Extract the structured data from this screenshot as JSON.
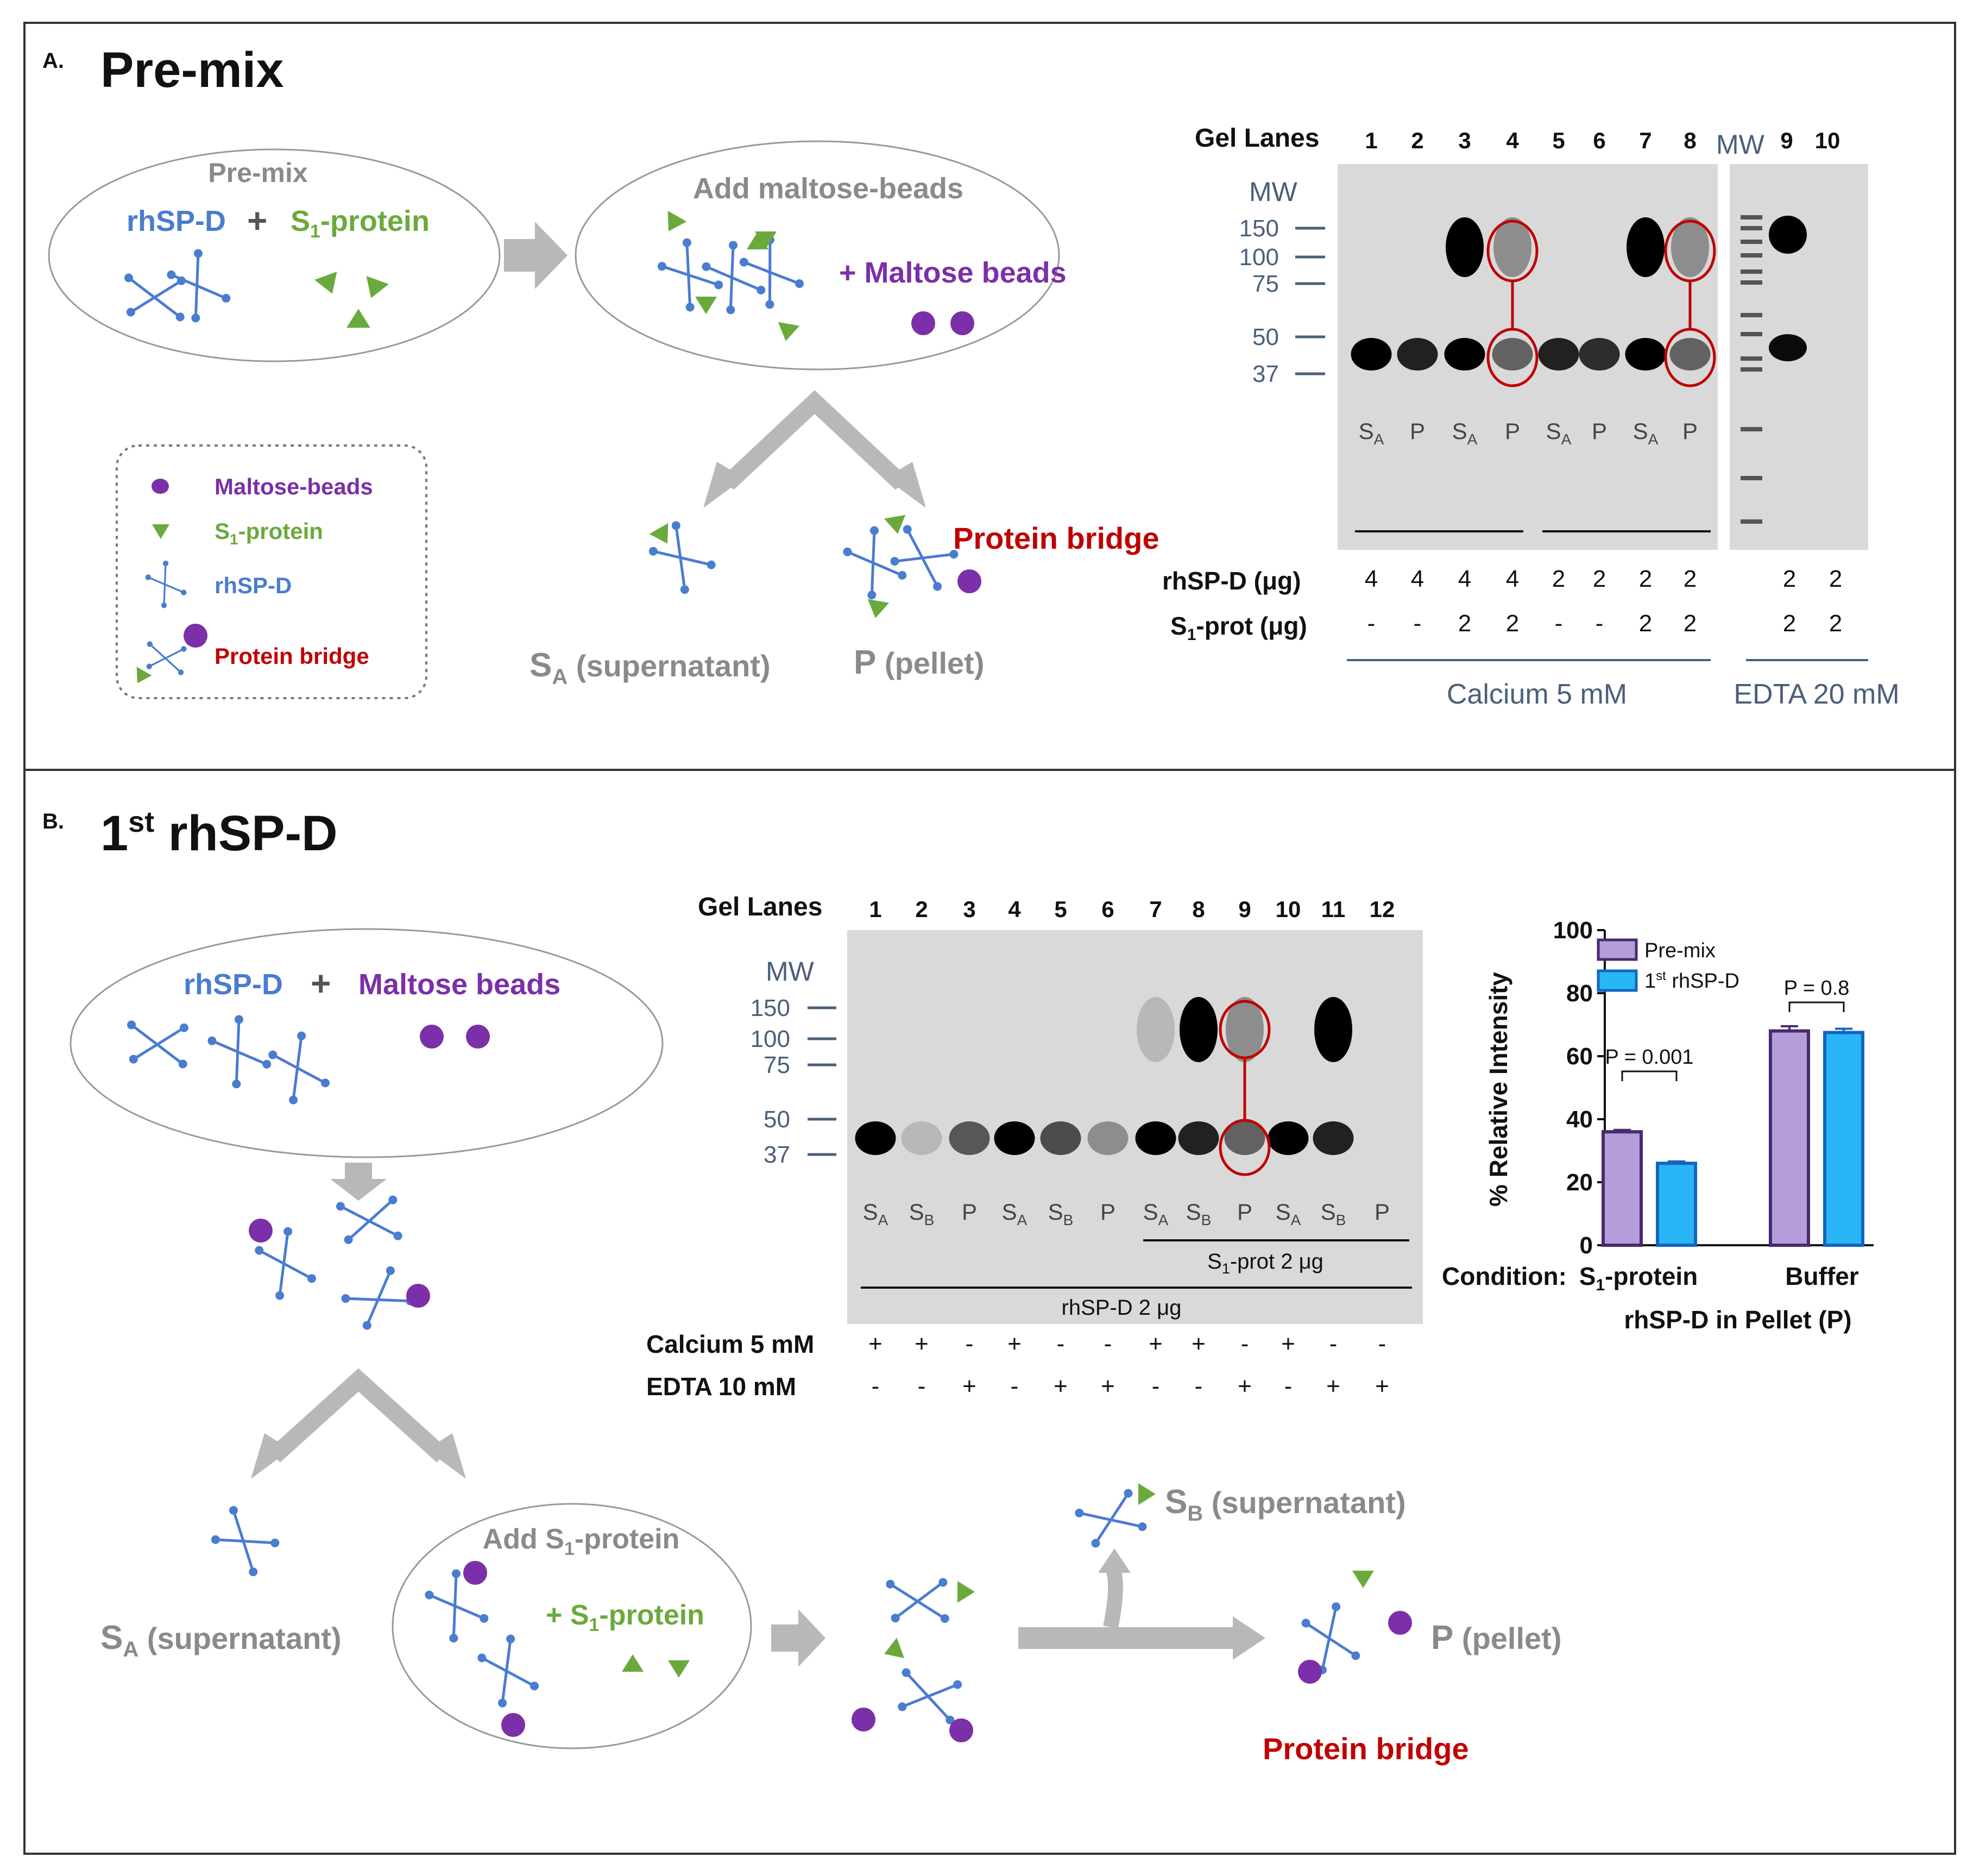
{
  "colors": {
    "blue": "#4a7cd0",
    "green": "#6aaa3c",
    "purple": "#7b2fa8",
    "red": "#c00000",
    "gray": "#8a8a8a",
    "slate": "#4b5f7a",
    "darkText": "#111111",
    "gel": "#d8d8d8",
    "premix": "#b39ddb",
    "first": "#29b6f6"
  },
  "panelA": {
    "letter": "A.",
    "title": "Pre-mix",
    "ellipse1_title": "Pre-mix",
    "rhspd": "rhSP-D",
    "plus": "+",
    "s1_main": "S",
    "s1_sub": "1",
    "s1_rest": "-protein",
    "ellipse2_title": "Add maltose-beads",
    "maltose_beads": "+ Maltose beads",
    "protein_bridge": "Protein bridge",
    "sa_main": "S",
    "sa_sub": "A",
    "sa_rest": " (supernatant)",
    "p_main": "P",
    "p_rest": " (pellet)",
    "legend": {
      "maltose": "Maltose-beads",
      "s1_main": "S",
      "s1_sub": "1",
      "s1_rest": "-protein",
      "rhspd": "rhSP-D",
      "bridge": "Protein bridge"
    },
    "gel": {
      "lanes_label": "Gel Lanes",
      "lane_numbers": [
        "1",
        "2",
        "3",
        "4",
        "5",
        "6",
        "7",
        "8"
      ],
      "mw_top": "MW",
      "lane9": "9",
      "lane10": "10",
      "mw_label": "MW",
      "markers": [
        "150",
        "100",
        "75",
        "50",
        "37"
      ],
      "fractions": [
        "S",
        "P",
        "S",
        "P",
        "S",
        "P",
        "S",
        "P"
      ],
      "frac_sub": "A",
      "rhspd_label": "rhSP-D (μg)",
      "rhspd_values": [
        "4",
        "4",
        "4",
        "4",
        "2",
        "2",
        "2",
        "2",
        "2",
        "2"
      ],
      "s1_label_main": "S",
      "s1_label_sub": "1",
      "s1_label_rest": "-prot (μg)",
      "s1_values": [
        "-",
        "-",
        "2",
        "2",
        "-",
        "-",
        "2",
        "2",
        "2",
        "2"
      ],
      "calcium": "Calcium 5 mM",
      "edta": "EDTA 20 mM"
    }
  },
  "panelB": {
    "letter": "B.",
    "title_main": "1",
    "title_sup": "st",
    "title_rest": " rhSP-D",
    "rhspd": "rhSP-D",
    "plus": "+",
    "maltose_beads": "Maltose beads",
    "sa_main": "S",
    "sa_sub": "A",
    "sa_rest": " (supernatant)",
    "add_s1_main": "Add S",
    "add_s1_sub": "1",
    "add_s1_rest": "-protein",
    "plus_s1_main": "+ S",
    "plus_s1_sub": "1",
    "plus_s1_rest": "-protein",
    "sb_main": "S",
    "sb_sub": "B",
    "sb_rest": " (supernatant)",
    "p_main": "P",
    "p_rest": " (pellet)",
    "protein_bridge": "Protein bridge",
    "gel": {
      "lanes_label": "Gel Lanes",
      "lane_numbers": [
        "1",
        "2",
        "3",
        "4",
        "5",
        "6",
        "7",
        "8",
        "9",
        "10",
        "11",
        "12"
      ],
      "mw_label": "MW",
      "markers": [
        "150",
        "100",
        "75",
        "50",
        "37"
      ],
      "fractions": [
        "S",
        "S",
        "P",
        "S",
        "S",
        "P",
        "S",
        "S",
        "P",
        "S",
        "S",
        "P"
      ],
      "frac_subs": [
        "A",
        "B",
        "",
        "A",
        "B",
        "",
        "A",
        "B",
        "",
        "A",
        "B",
        ""
      ],
      "s1_prot_main": "S",
      "s1_prot_sub": "1",
      "s1_prot_rest": "-prot 2 μg",
      "rhspd_amount": "rhSP-D 2 μg",
      "calcium_label": "Calcium 5 mM",
      "calcium_values": [
        "+",
        "+",
        "-",
        "+",
        "-",
        "-",
        "+",
        "+",
        "-",
        "+",
        "-",
        "-"
      ],
      "edta_label": "EDTA 10 mM",
      "edta_values": [
        "-",
        "-",
        "+",
        "-",
        "+",
        "+",
        "-",
        "-",
        "+",
        "-",
        "+",
        "+"
      ]
    }
  },
  "chart_data": {
    "type": "bar",
    "title": "",
    "ylabel": "% Relative Intensity",
    "xlabel": "rhSP-D in Pellet (P)",
    "x_prefix": "Condition:",
    "categories": [
      "S1-protein",
      "Buffer"
    ],
    "category_main": [
      "S",
      "Buffer"
    ],
    "category_sub": [
      "1",
      ""
    ],
    "category_rest": [
      "-protein",
      ""
    ],
    "series": [
      {
        "name": "Pre-mix",
        "values": [
          36,
          68
        ],
        "errors": [
          0.6,
          1.5
        ]
      },
      {
        "name": "1st rhSP-D",
        "values": [
          26,
          67.5
        ],
        "errors": [
          0.6,
          1.2
        ]
      }
    ],
    "legend_1": "Pre-mix",
    "legend_2_main": "1",
    "legend_2_sup": "st",
    "legend_2_rest": " rhSP-D",
    "ylim": [
      0,
      100
    ],
    "yticks": [
      "0",
      "20",
      "40",
      "60",
      "80",
      "100"
    ],
    "annotations": [
      "P = 0.001",
      "P = 0.8"
    ],
    "legend_position": "top-left"
  }
}
